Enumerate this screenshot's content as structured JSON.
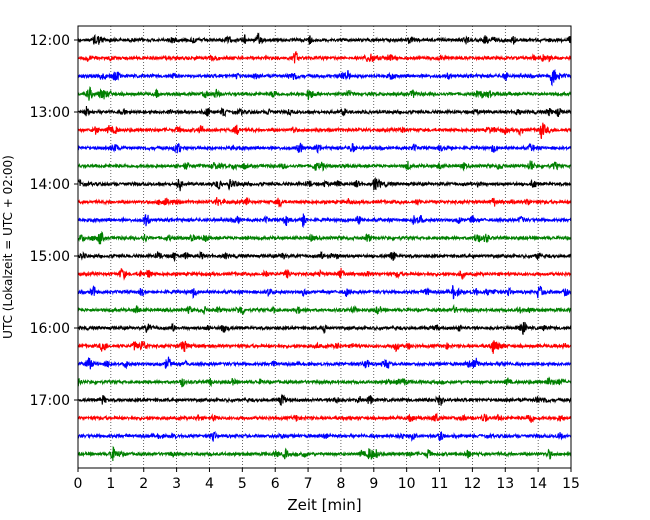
{
  "chart_data": {
    "type": "line",
    "xlabel": "Zeit  [min]",
    "ylabel": "UTC (Lokalzeit = UTC + 02:00)",
    "xlim": [
      0,
      15
    ],
    "x_ticks": [
      "0",
      "1",
      "2",
      "3",
      "4",
      "5",
      "6",
      "7",
      "8",
      "9",
      "10",
      "11",
      "12",
      "13",
      "14",
      "15"
    ],
    "y_ticks": [
      "12:00",
      "13:00",
      "14:00",
      "15:00",
      "16:00",
      "17:00"
    ],
    "grid": "vertical dotted at each minute",
    "trace_minutes": 15,
    "colors_cycle": [
      "#000000",
      "#ff0000",
      "#0000ff",
      "#008000"
    ],
    "series": [
      {
        "start": "12:00",
        "color": "#000000",
        "events": [
          {
            "t": 0.5,
            "amp": 1.0
          }
        ]
      },
      {
        "start": "12:15",
        "color": "#ff0000",
        "events": [
          {
            "t": 8.9,
            "amp": 0.5
          }
        ]
      },
      {
        "start": "12:30",
        "color": "#0000ff",
        "events": [
          {
            "t": 0.7,
            "amp": 0.4
          },
          {
            "t": 14.4,
            "amp": 1.0
          }
        ]
      },
      {
        "start": "12:45",
        "color": "#008000",
        "events": [
          {
            "t": 7.0,
            "amp": 0.7
          }
        ]
      },
      {
        "start": "13:00",
        "color": "#000000",
        "events": []
      },
      {
        "start": "13:15",
        "color": "#ff0000",
        "events": [
          {
            "t": 3.0,
            "amp": 0.3
          },
          {
            "t": 14.1,
            "amp": 0.8
          }
        ]
      },
      {
        "start": "13:30",
        "color": "#0000ff",
        "events": []
      },
      {
        "start": "13:45",
        "color": "#008000",
        "events": [
          {
            "t": 4.1,
            "amp": 0.5
          }
        ]
      },
      {
        "start": "14:00",
        "color": "#000000",
        "events": [
          {
            "t": 4.6,
            "amp": 0.6
          },
          {
            "t": 9.0,
            "amp": 0.9
          }
        ]
      },
      {
        "start": "14:15",
        "color": "#ff0000",
        "events": []
      },
      {
        "start": "14:30",
        "color": "#0000ff",
        "events": [
          {
            "t": 10.2,
            "amp": 0.5
          }
        ]
      },
      {
        "start": "14:45",
        "color": "#008000",
        "events": []
      },
      {
        "start": "15:00",
        "color": "#000000",
        "events": []
      },
      {
        "start": "15:15",
        "color": "#ff0000",
        "events": []
      },
      {
        "start": "15:30",
        "color": "#0000ff",
        "events": [
          {
            "t": 11.4,
            "amp": 0.8
          },
          {
            "t": 14.0,
            "amp": 0.5
          }
        ]
      },
      {
        "start": "15:45",
        "color": "#008000",
        "events": []
      },
      {
        "start": "16:00",
        "color": "#000000",
        "events": [
          {
            "t": 2.1,
            "amp": 0.3
          }
        ]
      },
      {
        "start": "16:15",
        "color": "#ff0000",
        "events": [
          {
            "t": 3.2,
            "amp": 0.5
          },
          {
            "t": 12.6,
            "amp": 1.0
          }
        ]
      },
      {
        "start": "16:30",
        "color": "#0000ff",
        "events": [
          {
            "t": 0.3,
            "amp": 0.4
          }
        ]
      },
      {
        "start": "16:45",
        "color": "#008000",
        "events": [
          {
            "t": 14.3,
            "amp": 0.4
          }
        ]
      },
      {
        "start": "17:00",
        "color": "#000000",
        "events": []
      },
      {
        "start": "17:15",
        "color": "#ff0000",
        "events": [
          {
            "t": 10.1,
            "amp": 0.4
          }
        ]
      },
      {
        "start": "17:30",
        "color": "#0000ff",
        "events": []
      },
      {
        "start": "17:45",
        "color": "#008000",
        "events": [
          {
            "t": 1.0,
            "amp": 1.0
          }
        ]
      }
    ]
  }
}
